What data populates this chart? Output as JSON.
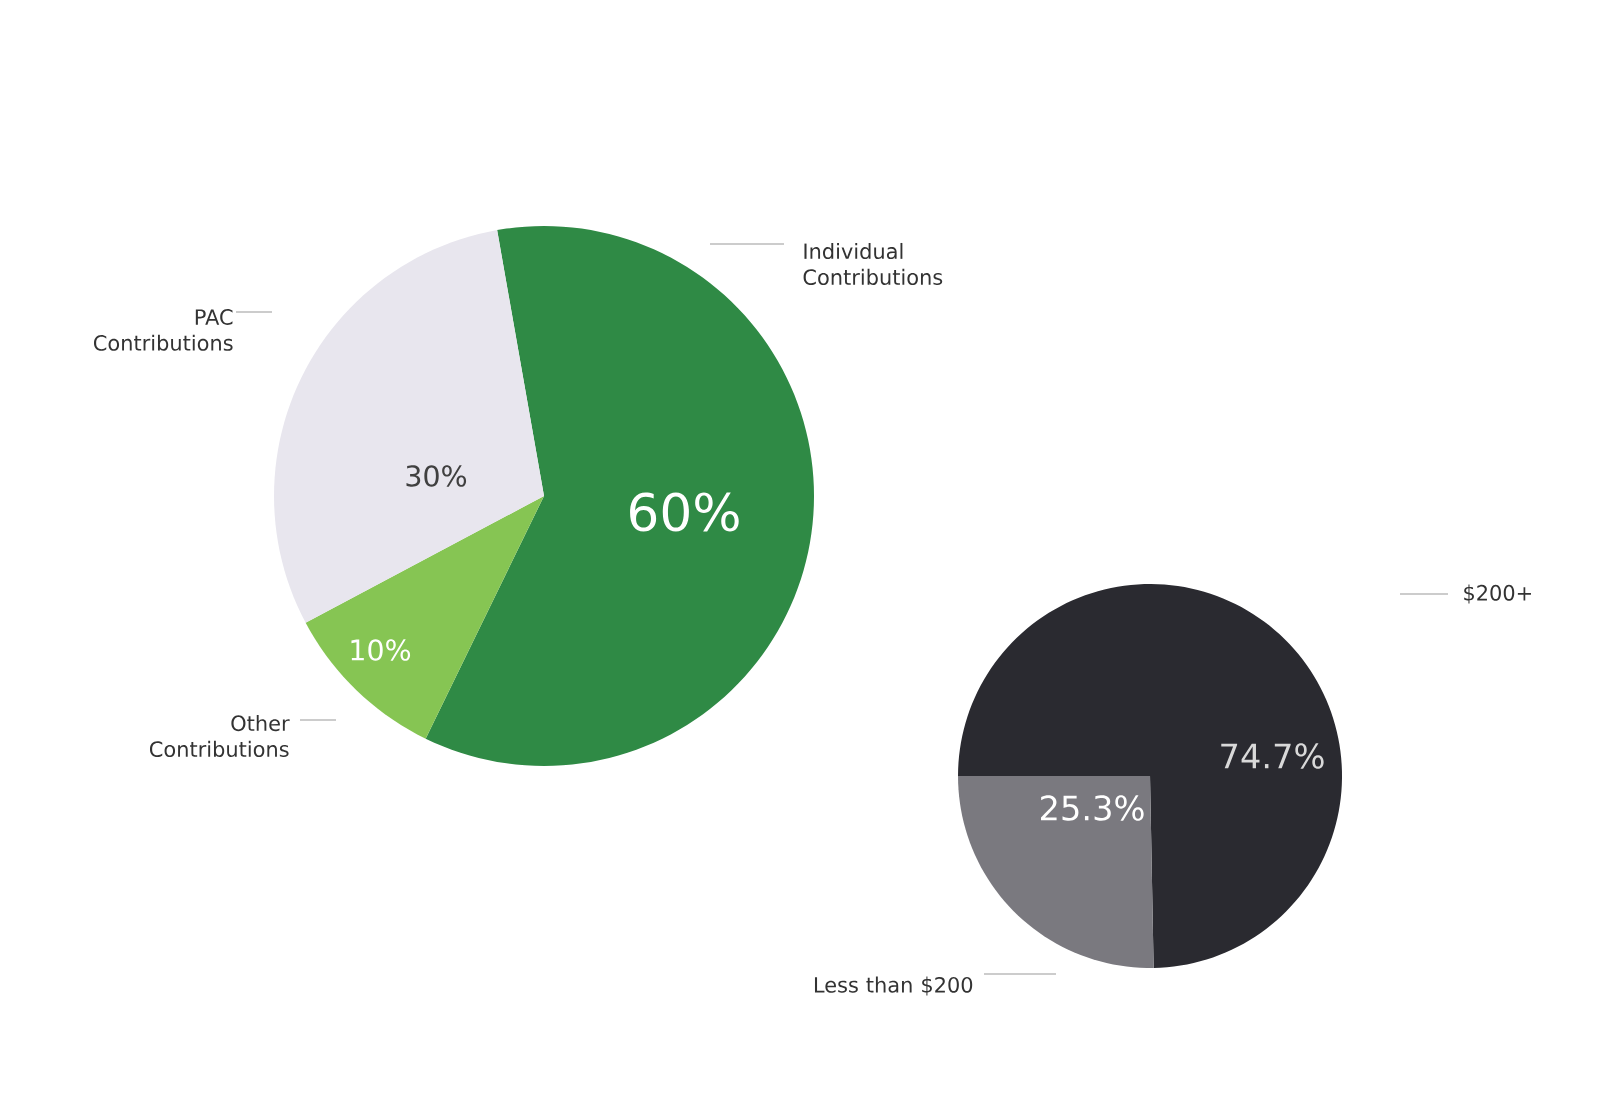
{
  "chart_data": [
    {
      "type": "pie",
      "categories": [
        "Individual Contributions",
        "Other Contributions",
        "PAC Contributions"
      ],
      "values": [
        60,
        10,
        30
      ],
      "colors": [
        "#2f8a45",
        "#86c553",
        "#e8e6ee"
      ],
      "value_labels": [
        "60%",
        "10%",
        "30%"
      ]
    },
    {
      "type": "pie",
      "categories": [
        "$200+",
        "Less than $200"
      ],
      "values": [
        74.7,
        25.3
      ],
      "colors": [
        "#2a2a30",
        "#7a797f"
      ],
      "value_labels": [
        "74.7%",
        "25.3%"
      ]
    }
  ]
}
